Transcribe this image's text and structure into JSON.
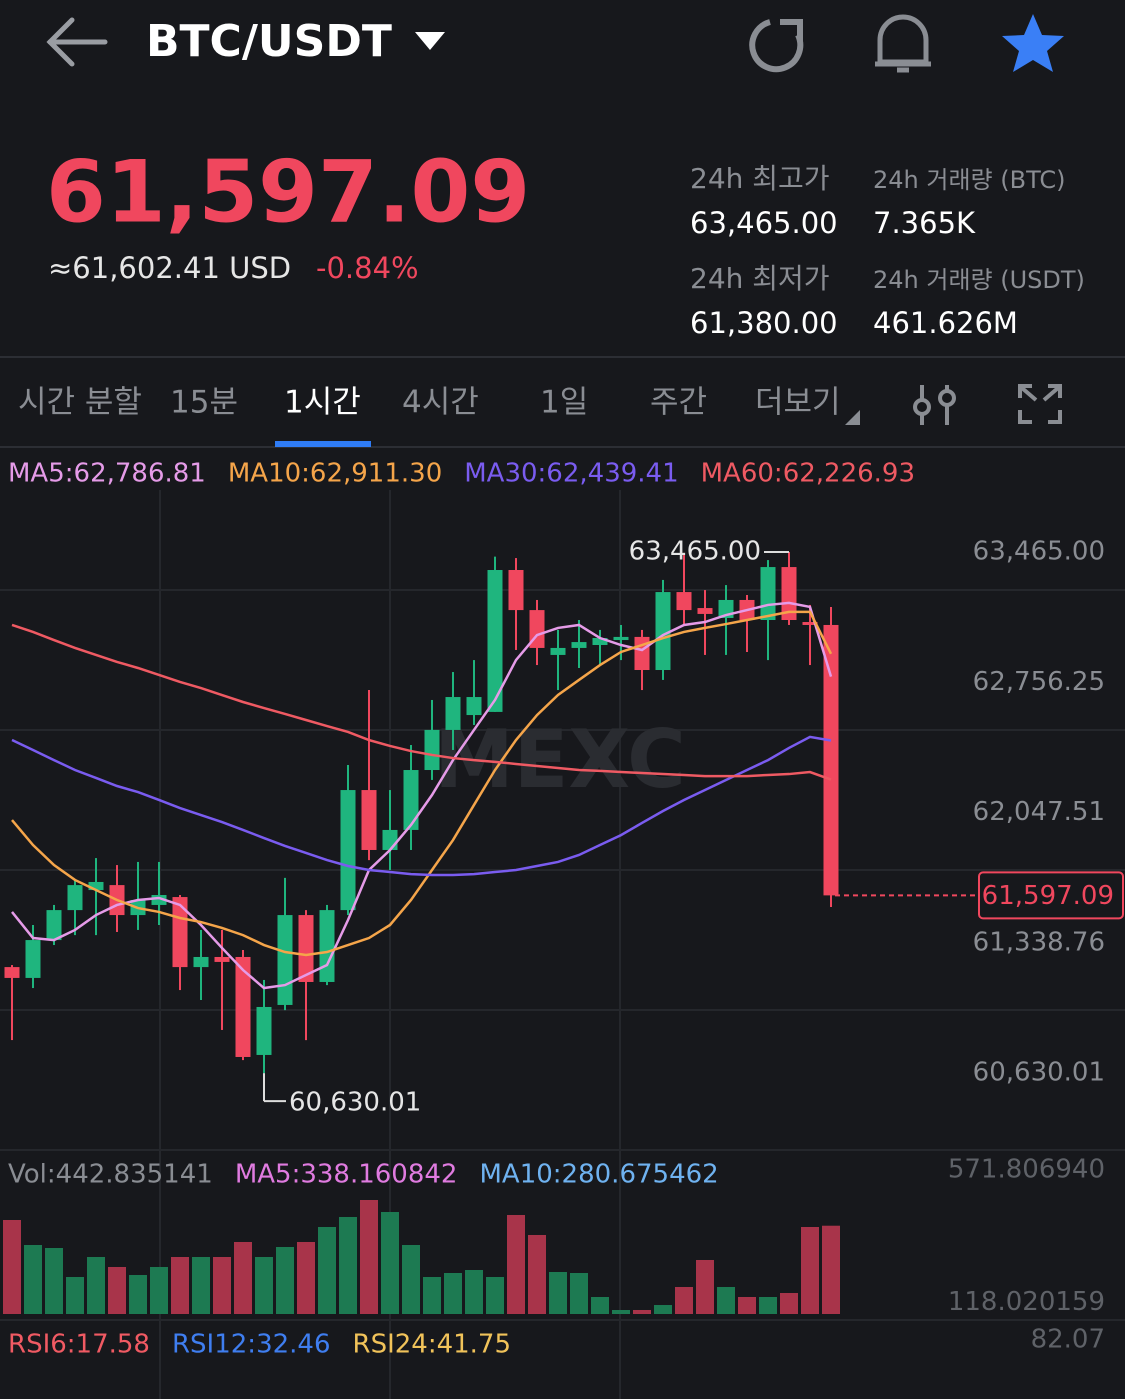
{
  "header": {
    "pair": "BTC/USDT"
  },
  "ticker": {
    "price": "61,597.09",
    "usd": "≈61,602.41 USD",
    "change": "-0.84%",
    "stats": [
      {
        "label": "24h 최고가",
        "value": "63,465.00"
      },
      {
        "label": "24h 거래량 (BTC)",
        "value": "7.365K"
      },
      {
        "label": "24h 최저가",
        "value": "61,380.00"
      },
      {
        "label": "24h 거래량 (USDT)",
        "value": "461.626M"
      }
    ]
  },
  "tabs": [
    {
      "label": "시간 분할"
    },
    {
      "label": "15분"
    },
    {
      "label": "1시간",
      "active": true
    },
    {
      "label": "4시간"
    },
    {
      "label": "1일"
    },
    {
      "label": "주간"
    },
    {
      "label": "더보기"
    }
  ],
  "chart_data": {
    "type": "candlestick",
    "up_color": "#1fb57e",
    "down_color": "#f0475e",
    "open": [
      61207,
      61148,
      61354,
      61517,
      61626,
      61653,
      61490,
      61545,
      61588,
      61207,
      61262,
      61262,
      60729,
      61001,
      61490,
      61126,
      61517,
      62170,
      61844,
      61953,
      62279,
      62497,
      62578,
      62595,
      63367,
      63149,
      62905,
      62943,
      62959,
      62986,
      63003,
      62823,
      63247,
      63160,
      63106,
      63204,
      63095,
      63383,
      63084,
      63068
    ],
    "high": [
      61218,
      61436,
      61545,
      61681,
      61800,
      61762,
      61779,
      61779,
      61599,
      61409,
      61409,
      61300,
      61137,
      61692,
      61517,
      61545,
      62306,
      62714,
      62170,
      62415,
      62660,
      62812,
      62877,
      63440,
      63432,
      63204,
      63041,
      63095,
      63041,
      63068,
      63041,
      63313,
      63460,
      63258,
      63285,
      63231,
      63421,
      63465,
      63177,
      63166
    ],
    "low": [
      60810,
      61093,
      61327,
      61381,
      61381,
      61398,
      61409,
      61436,
      61082,
      61028,
      60865,
      60701,
      60630.01,
      60973,
      60810,
      61109,
      61490,
      61789,
      61735,
      61844,
      62225,
      62388,
      62524,
      62595,
      62932,
      62850,
      62714,
      62834,
      62850,
      62877,
      62714,
      62769,
      63068,
      62905,
      62905,
      62921,
      62877,
      63068,
      62850,
      61534
    ],
    "close": [
      61148,
      61354,
      61517,
      61653,
      61670,
      61490,
      61572,
      61599,
      61207,
      61262,
      61235,
      60718,
      60990,
      61490,
      61126,
      61517,
      62170,
      61844,
      61953,
      62279,
      62497,
      62676,
      62676,
      63367,
      63149,
      62943,
      62943,
      62975,
      62997,
      63003,
      62823,
      63247,
      63149,
      63128,
      63204,
      63095,
      63383,
      63095,
      63068,
      61597.09
    ],
    "ylim": [
      60212,
      63775
    ],
    "yticks": [
      {
        "value": 63465,
        "label": "63,465.00"
      },
      {
        "value": 62756.25,
        "label": "62,756.25"
      },
      {
        "value": 62047.51,
        "label": "62,047.51"
      },
      {
        "value": 61338.76,
        "label": "61,338.76"
      },
      {
        "value": 60630.01,
        "label": "60,630.01"
      }
    ],
    "series": [
      {
        "name": "MA5",
        "legend": "MA5:62,786.81",
        "color": "#e59be8",
        "values": [
          61507,
          61365,
          61354,
          61409,
          61490,
          61545,
          61572,
          61583,
          61545,
          61436,
          61311,
          61191,
          61093,
          61109,
          61164,
          61218,
          61463,
          61735,
          61844,
          61980,
          62143,
          62333,
          62497,
          62660,
          62877,
          63013,
          63052,
          63068,
          62997,
          62959,
          62932,
          63013,
          63068,
          63084,
          63122,
          63149,
          63177,
          63188,
          63166,
          62786.81
        ]
      },
      {
        "name": "MA10",
        "legend": "MA10:62,911.30",
        "color": "#f5a54a",
        "values": [
          62007,
          61871,
          61762,
          61681,
          61626,
          61572,
          61528,
          61507,
          61474,
          61452,
          61420,
          61381,
          61327,
          61289,
          61273,
          61289,
          61327,
          61365,
          61436,
          61572,
          61735,
          61898,
          62089,
          62279,
          62442,
          62578,
          62687,
          62769,
          62850,
          62921,
          62959,
          62997,
          63030,
          63052,
          63073,
          63095,
          63117,
          63139,
          63139,
          62911.3
        ]
      },
      {
        "name": "MA30",
        "legend": "MA30:62,439.41",
        "color": "#7a5cf0",
        "values": [
          62442,
          62388,
          62333,
          62279,
          62236,
          62192,
          62159,
          62116,
          62072,
          62034,
          61996,
          61953,
          61909,
          61866,
          61828,
          61789,
          61757,
          61735,
          61724,
          61713,
          61708,
          61708,
          61713,
          61724,
          61735,
          61757,
          61779,
          61817,
          61871,
          61925,
          61991,
          62056,
          62116,
          62170,
          62225,
          62279,
          62333,
          62399,
          62459,
          62439.41
        ]
      },
      {
        "name": "MA60",
        "legend": "MA60:62,226.93",
        "color": "#ef5a63",
        "values": [
          63068,
          63030,
          62986,
          62943,
          62905,
          62867,
          62834,
          62796,
          62758,
          62725,
          62687,
          62649,
          62616,
          62584,
          62551,
          62518,
          62486,
          62442,
          62410,
          62382,
          62361,
          62344,
          62333,
          62323,
          62312,
          62301,
          62290,
          62279,
          62274,
          62268,
          62263,
          62257,
          62252,
          62246,
          62246,
          62246,
          62252,
          62257,
          62268,
          62226.93
        ]
      }
    ],
    "last_price_label": "61,597.09",
    "high_label": "63,465.00",
    "low_label": "60,630.01",
    "volume": {
      "values": [
        471.5,
        346.1,
        331.1,
        185.6,
        285.9,
        235.8,
        195.6,
        235.8,
        285.9,
        285.9,
        285.9,
        361.2,
        285.9,
        336.1,
        361.2,
        436.4,
        486.6,
        571.8,
        511.6,
        346.1,
        185.6,
        205.7,
        220.7,
        185.6,
        496.6,
        396.3,
        210.7,
        205.7,
        85.3,
        20.1,
        20.1,
        45.1,
        135.4,
        270.9,
        135.4,
        85.3,
        85.3,
        105.3,
        436.4,
        442.835141
      ],
      "ylim": [
        0,
        571.80694
      ],
      "yticks": [
        {
          "value": 571.80694,
          "label": "571.806940"
        },
        {
          "value": 118.020159,
          "label": "118.020159"
        }
      ],
      "legend": [
        {
          "text": "Vol:442.835141",
          "color": "#8a8d93"
        },
        {
          "text": "MA5:338.160842",
          "color": "#e07be0"
        },
        {
          "text": "MA10:280.675462",
          "color": "#6fb2f0"
        }
      ]
    },
    "rsi": {
      "legend": [
        {
          "text": "RSI6:17.58",
          "color": "#f05a63"
        },
        {
          "text": "RSI12:32.46",
          "color": "#3f7ef0"
        },
        {
          "text": "RSI24:41.75",
          "color": "#f1c35a"
        }
      ],
      "axis_label": "82.07"
    }
  }
}
